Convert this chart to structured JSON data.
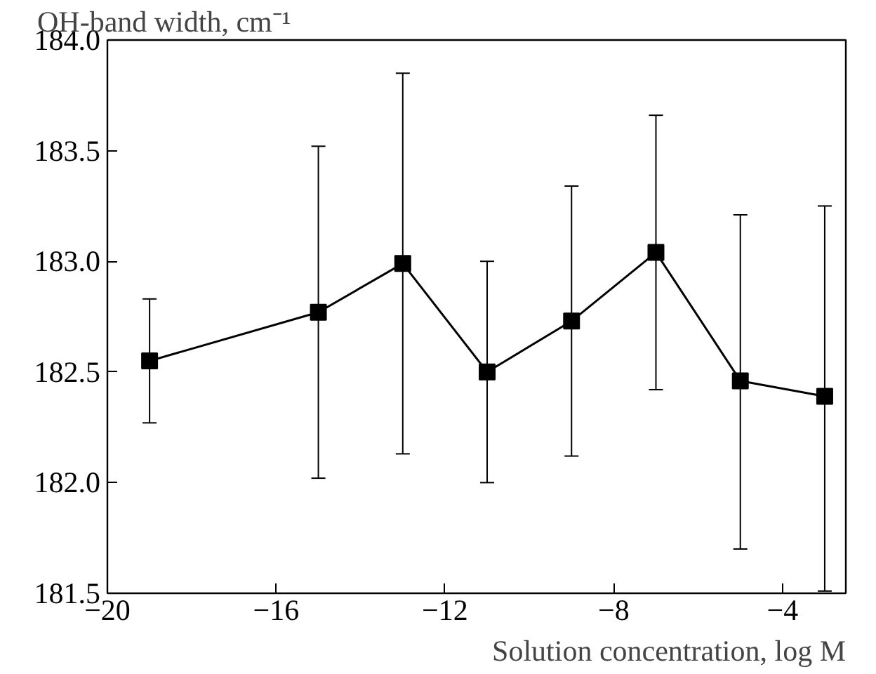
{
  "chart_data": {
    "type": "line",
    "xlabel": "Solution concentration, log M",
    "ylabel": "OH-band width, cm⁻¹",
    "x": [
      -19,
      -15,
      -13,
      -11,
      -9,
      -7,
      -5,
      -3
    ],
    "series": [
      {
        "color": "#000000",
        "values": [
          182.55,
          182.77,
          182.99,
          182.5,
          182.73,
          183.04,
          182.46,
          182.39
        ],
        "errors": [
          [
            182.27,
            182.83
          ],
          [
            182.02,
            183.52
          ],
          [
            182.13,
            183.85
          ],
          [
            182.0,
            183.0
          ],
          [
            182.12,
            183.34
          ],
          [
            182.42,
            183.66
          ],
          [
            181.7,
            183.21
          ],
          [
            181.51,
            183.25
          ]
        ]
      }
    ],
    "xlim": [
      -20,
      -2.5
    ],
    "ylim": [
      181.5,
      184.0
    ],
    "xticks": [
      {
        "value": -20,
        "label": "−20"
      },
      {
        "value": -16,
        "label": "−16"
      },
      {
        "value": -12,
        "label": "−12"
      },
      {
        "value": -8,
        "label": "−8"
      },
      {
        "value": -4,
        "label": "−4"
      }
    ],
    "yticks": [
      {
        "value": 181.5,
        "label": "181.5"
      },
      {
        "value": 182.0,
        "label": "182.0"
      },
      {
        "value": 182.5,
        "label": "182.5"
      },
      {
        "value": 183.0,
        "label": "183.0"
      },
      {
        "value": 183.5,
        "label": "183.5"
      },
      {
        "value": 184.0,
        "label": "184.0"
      }
    ],
    "marker": "square",
    "line_style": "solid",
    "grid": false
  }
}
